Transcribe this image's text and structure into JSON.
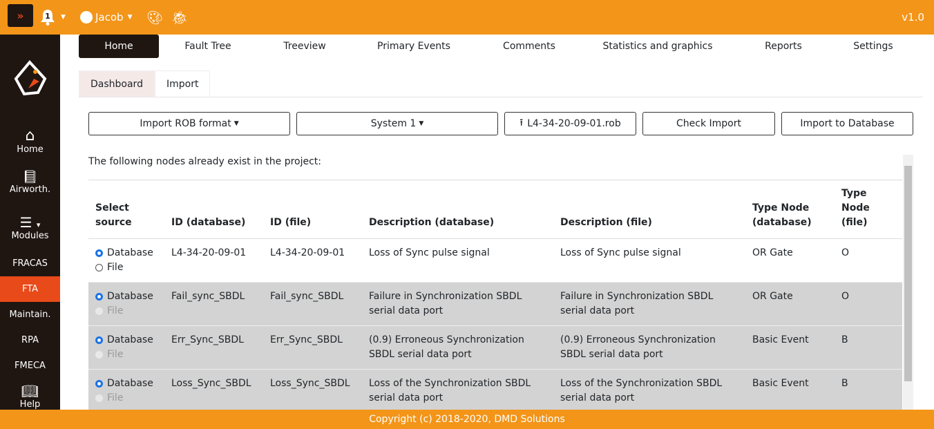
{
  "topbar": {
    "notifications": "1",
    "user": "Jacob",
    "version": "v1.0"
  },
  "sidebar": [
    {
      "label": "Home",
      "icon": "home-icon"
    },
    {
      "label": "Airworth.",
      "icon": "book-globe-icon"
    },
    {
      "label": "Modules",
      "icon": "menu-icon"
    },
    {
      "label": "FRACAS"
    },
    {
      "label": "FTA",
      "active": true
    },
    {
      "label": "Maintain."
    },
    {
      "label": "RPA"
    },
    {
      "label": "FMECA"
    },
    {
      "label": "Help",
      "icon": "book-icon"
    }
  ],
  "tabs": [
    "Home",
    "Fault Tree",
    "Treeview",
    "Primary Events",
    "Comments",
    "Statistics and graphics",
    "Reports",
    "Settings"
  ],
  "subtabs": [
    "Dashboard",
    "Import"
  ],
  "buttons": {
    "format": "Import ROB format",
    "system": "System 1",
    "file": "L4-34-20-09-01.rob",
    "check": "Check Import",
    "import": "Import to Database"
  },
  "note": "The following nodes already exist in the project:",
  "table": {
    "headers": [
      "Select source",
      "ID (database)",
      "ID (file)",
      "Description (database)",
      "Description (file)",
      "Type Node (database)",
      "Type Node (file)"
    ],
    "radio_labels": [
      "Database",
      "File"
    ],
    "rows": [
      [
        "L4-34-20-09-01",
        "L4-34-20-09-01",
        "Loss of Sync pulse signal",
        "Loss of Sync pulse signal",
        "OR Gate",
        "O"
      ],
      [
        "Fail_sync_SBDL",
        "Fail_sync_SBDL",
        "Failure in Synchronization SBDL serial data port",
        "Failure in Synchronization SBDL serial data port",
        "OR Gate",
        "O"
      ],
      [
        "Err_Sync_SBDL",
        "Err_Sync_SBDL",
        "(0.9) Erroneous Synchronization SBDL serial data port",
        "(0.9) Erroneous Synchronization SBDL serial data port",
        "Basic Event",
        "B"
      ],
      [
        "Loss_Sync_SBDL",
        "Loss_Sync_SBDL",
        "Loss of the Synchronization SBDL serial data port",
        "Loss of the Synchronization SBDL serial data port",
        "Basic Event",
        "B"
      ]
    ]
  },
  "footer": "Copyright (c) 2018-2020, DMD Solutions",
  "colors": {
    "accent": "#F39519",
    "dark": "#1f1612",
    "active": "#e84a1a"
  }
}
